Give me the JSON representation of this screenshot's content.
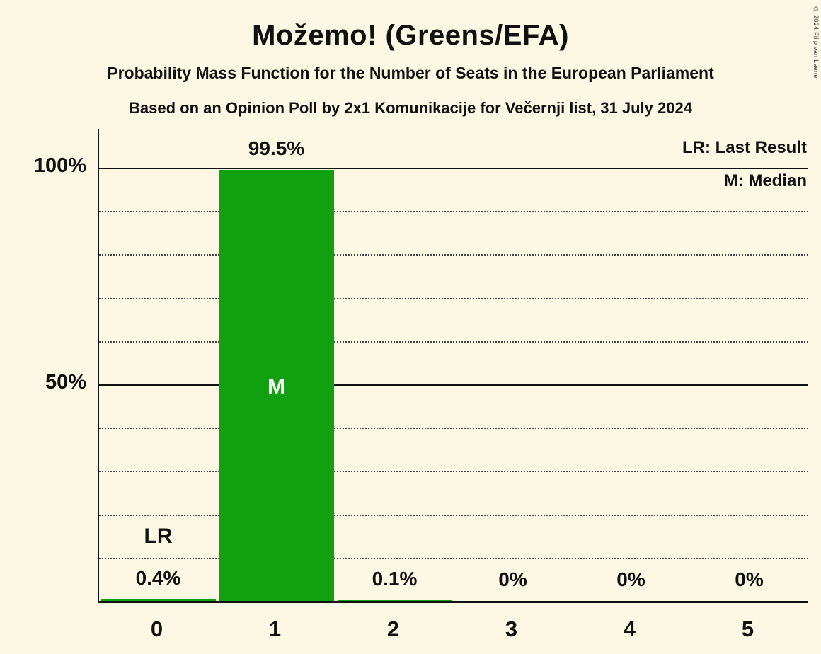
{
  "page": {
    "background": "#FCF8E4",
    "copyright": "© 2024 Filip van Laenen"
  },
  "chart_data": {
    "type": "bar",
    "title": "Možemo! (Greens/EFA)",
    "subtitle": "Probability Mass Function for the Number of Seats in the European Parliament",
    "source_line": "Based on an Opinion Poll by 2x1 Komunikacije for Večernji list, 31 July 2024",
    "xlabel": "",
    "ylabel": "",
    "categories": [
      "0",
      "1",
      "2",
      "3",
      "4",
      "5"
    ],
    "values": [
      0.4,
      99.5,
      0.1,
      0,
      0,
      0
    ],
    "value_labels": [
      "0.4%",
      "99.5%",
      "0.1%",
      "0%",
      "0%",
      "0%"
    ],
    "bar_color": "#10A010",
    "text_color": "#111111",
    "median_category": "1",
    "median_marker": "M",
    "median_marker_color": "#FFFFFF",
    "last_result_category": "0",
    "last_result_marker": "LR",
    "legend": [
      {
        "label": "LR: Last Result"
      },
      {
        "label": "M: Median"
      }
    ],
    "y_axis": {
      "ylim": [
        0,
        100
      ],
      "grid_step": 10,
      "solid_ticks": [
        50,
        100
      ],
      "labeled_ticks": [
        {
          "value": 100,
          "label": "100%"
        },
        {
          "value": 50,
          "label": "50%"
        }
      ]
    },
    "grid": true,
    "legend_position": "top-right"
  }
}
